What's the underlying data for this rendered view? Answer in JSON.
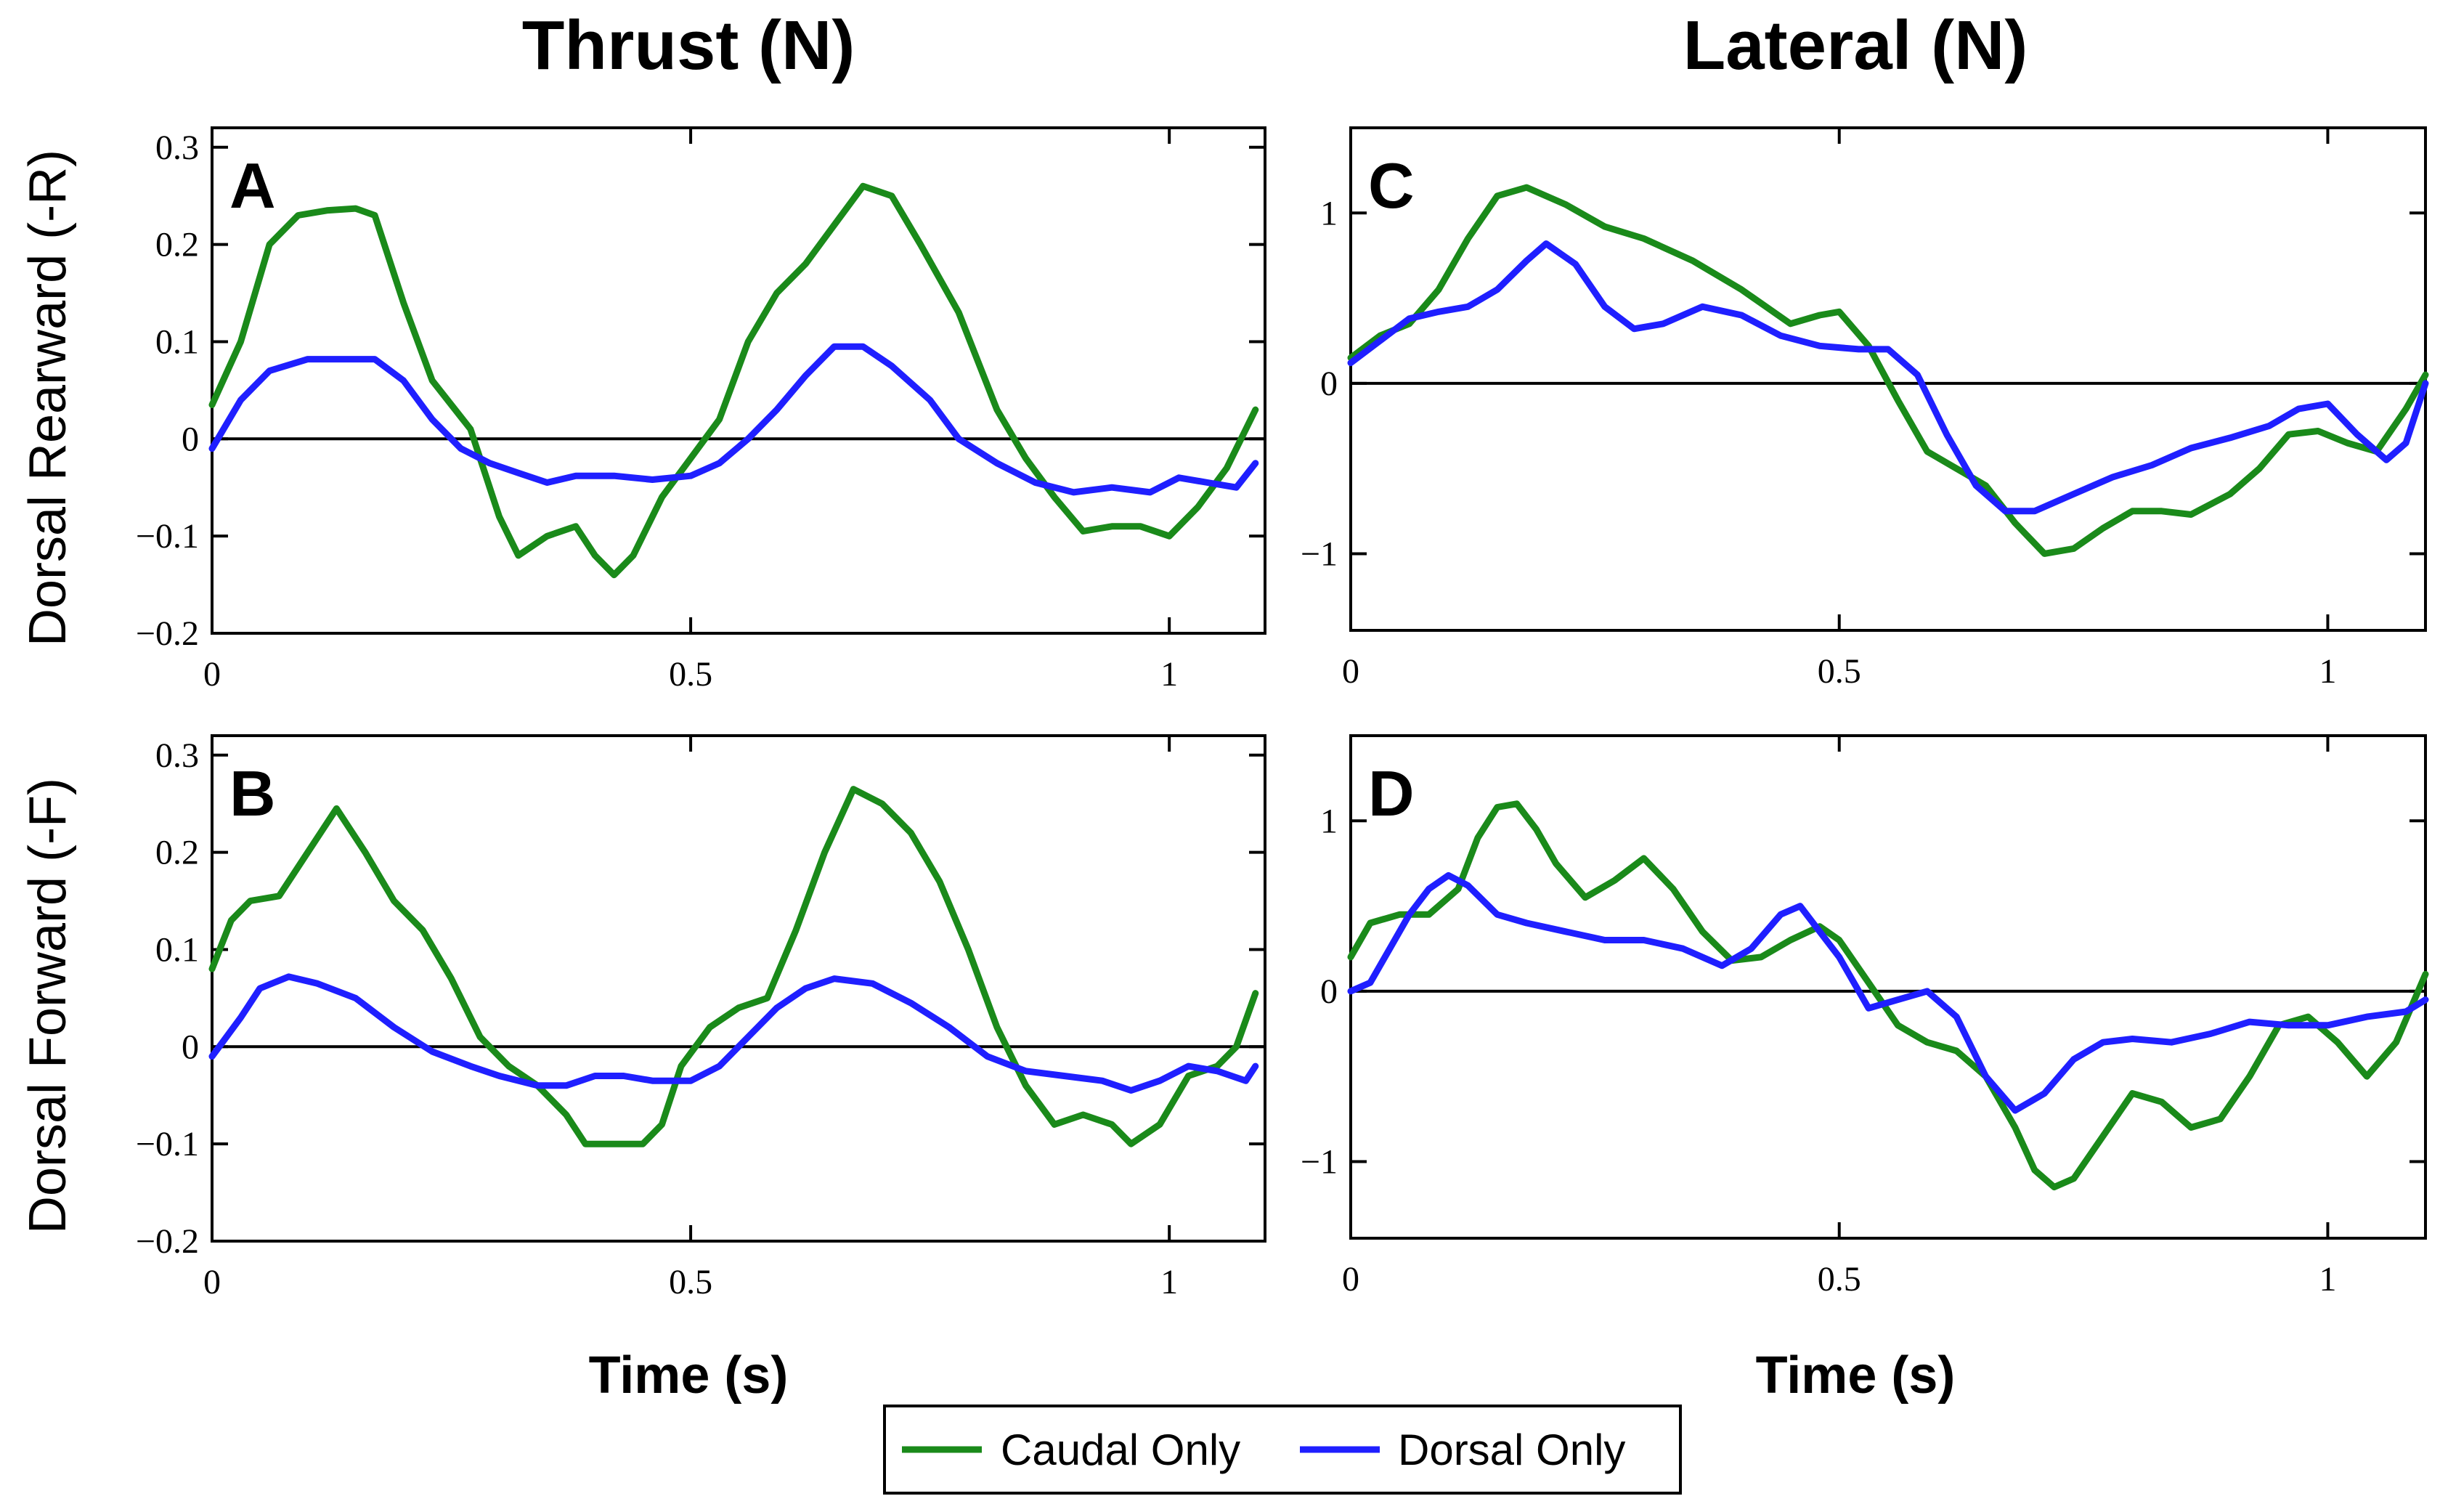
{
  "figure": {
    "col_titles": [
      "Thrust (N)",
      "Lateral (N)"
    ],
    "row_labels": [
      "Dorsal Rearward (-R)",
      "Dorsal Forward (-F)"
    ],
    "xlabel": "Time (s)"
  },
  "legend": {
    "entries": [
      {
        "label": "Caudal Only",
        "color": "#1a8a1a"
      },
      {
        "label": "Dorsal Only",
        "color": "#1f1fff"
      }
    ]
  },
  "chart_data": [
    {
      "panel": "A",
      "type": "line",
      "xlim": [
        0,
        1.1
      ],
      "ylim": [
        -0.2,
        0.32
      ],
      "xticks": [
        0,
        0.5,
        1
      ],
      "yticks": [
        -0.2,
        -0.1,
        0,
        0.1,
        0.2,
        0.3
      ],
      "xtick_labels": [
        "0",
        "0.5",
        "1"
      ],
      "ytick_labels": [
        "−0.2",
        "−0.1",
        "0",
        "0.1",
        "0.2",
        "0.3"
      ],
      "zero_line": true,
      "series": [
        {
          "name": "Caudal Only",
          "x": [
            0,
            0.03,
            0.06,
            0.09,
            0.12,
            0.15,
            0.17,
            0.2,
            0.23,
            0.27,
            0.3,
            0.32,
            0.35,
            0.38,
            0.4,
            0.42,
            0.44,
            0.47,
            0.5,
            0.53,
            0.56,
            0.59,
            0.62,
            0.65,
            0.68,
            0.71,
            0.74,
            0.78,
            0.82,
            0.85,
            0.88,
            0.91,
            0.94,
            0.97,
            1.0,
            1.03,
            1.06,
            1.09
          ],
          "y": [
            0.035,
            0.1,
            0.2,
            0.23,
            0.235,
            0.237,
            0.23,
            0.14,
            0.06,
            0.01,
            -0.08,
            -0.12,
            -0.1,
            -0.09,
            -0.12,
            -0.14,
            -0.12,
            -0.06,
            -0.02,
            0.02,
            0.1,
            0.15,
            0.18,
            0.22,
            0.26,
            0.25,
            0.2,
            0.13,
            0.03,
            -0.02,
            -0.06,
            -0.095,
            -0.09,
            -0.09,
            -0.1,
            -0.07,
            -0.03,
            0.03
          ]
        },
        {
          "name": "Dorsal Only",
          "x": [
            0,
            0.03,
            0.06,
            0.1,
            0.14,
            0.17,
            0.2,
            0.23,
            0.26,
            0.29,
            0.32,
            0.35,
            0.38,
            0.42,
            0.46,
            0.5,
            0.53,
            0.56,
            0.59,
            0.62,
            0.65,
            0.68,
            0.71,
            0.75,
            0.78,
            0.82,
            0.86,
            0.9,
            0.94,
            0.98,
            1.01,
            1.04,
            1.07,
            1.09
          ],
          "y": [
            -0.01,
            0.04,
            0.07,
            0.082,
            0.082,
            0.082,
            0.06,
            0.02,
            -0.01,
            -0.025,
            -0.035,
            -0.045,
            -0.038,
            -0.038,
            -0.042,
            -0.038,
            -0.025,
            0,
            0.03,
            0.065,
            0.095,
            0.095,
            0.075,
            0.04,
            0,
            -0.025,
            -0.045,
            -0.055,
            -0.05,
            -0.055,
            -0.04,
            -0.045,
            -0.05,
            -0.025
          ]
        }
      ]
    },
    {
      "panel": "B",
      "type": "line",
      "xlim": [
        0,
        1.1
      ],
      "ylim": [
        -0.2,
        0.32
      ],
      "xticks": [
        0,
        0.5,
        1
      ],
      "yticks": [
        -0.2,
        -0.1,
        0,
        0.1,
        0.2,
        0.3
      ],
      "xtick_labels": [
        "0",
        "0.5",
        "1"
      ],
      "ytick_labels": [
        "−0.2",
        "−0.1",
        "0",
        "0.1",
        "0.2",
        "0.3"
      ],
      "zero_line": true,
      "series": [
        {
          "name": "Caudal Only",
          "x": [
            0,
            0.02,
            0.04,
            0.07,
            0.1,
            0.13,
            0.16,
            0.19,
            0.22,
            0.25,
            0.28,
            0.31,
            0.34,
            0.37,
            0.39,
            0.42,
            0.45,
            0.47,
            0.49,
            0.52,
            0.55,
            0.58,
            0.61,
            0.64,
            0.67,
            0.7,
            0.73,
            0.76,
            0.79,
            0.82,
            0.85,
            0.88,
            0.91,
            0.94,
            0.96,
            0.99,
            1.02,
            1.05,
            1.07,
            1.09
          ],
          "y": [
            0.08,
            0.13,
            0.15,
            0.155,
            0.2,
            0.245,
            0.2,
            0.15,
            0.12,
            0.07,
            0.01,
            -0.02,
            -0.04,
            -0.07,
            -0.1,
            -0.1,
            -0.1,
            -0.08,
            -0.02,
            0.02,
            0.04,
            0.05,
            0.12,
            0.2,
            0.265,
            0.25,
            0.22,
            0.17,
            0.1,
            0.02,
            -0.04,
            -0.08,
            -0.07,
            -0.08,
            -0.1,
            -0.08,
            -0.03,
            -0.02,
            0,
            0.055
          ]
        },
        {
          "name": "Dorsal Only",
          "x": [
            0,
            0.03,
            0.05,
            0.08,
            0.11,
            0.15,
            0.19,
            0.23,
            0.27,
            0.3,
            0.34,
            0.37,
            0.4,
            0.43,
            0.46,
            0.5,
            0.53,
            0.56,
            0.59,
            0.62,
            0.65,
            0.69,
            0.73,
            0.77,
            0.81,
            0.85,
            0.89,
            0.93,
            0.96,
            0.99,
            1.02,
            1.05,
            1.08,
            1.09
          ],
          "y": [
            -0.01,
            0.03,
            0.06,
            0.072,
            0.065,
            0.05,
            0.02,
            -0.005,
            -0.02,
            -0.03,
            -0.04,
            -0.04,
            -0.03,
            -0.03,
            -0.035,
            -0.035,
            -0.02,
            0.01,
            0.04,
            0.06,
            0.07,
            0.065,
            0.045,
            0.02,
            -0.01,
            -0.025,
            -0.03,
            -0.035,
            -0.045,
            -0.035,
            -0.02,
            -0.025,
            -0.035,
            -0.02
          ]
        }
      ]
    },
    {
      "panel": "C",
      "type": "line",
      "xlim": [
        0,
        1.1
      ],
      "ylim": [
        -1.45,
        1.5
      ],
      "xticks": [
        0,
        0.5,
        1
      ],
      "yticks": [
        -1,
        0,
        1
      ],
      "xtick_labels": [
        "0",
        "0.5",
        "1"
      ],
      "ytick_labels": [
        "−1",
        "0",
        "1"
      ],
      "zero_line": true,
      "series": [
        {
          "name": "Caudal Only",
          "x": [
            0,
            0.03,
            0.06,
            0.09,
            0.12,
            0.15,
            0.18,
            0.22,
            0.26,
            0.3,
            0.35,
            0.4,
            0.45,
            0.48,
            0.5,
            0.53,
            0.56,
            0.59,
            0.62,
            0.65,
            0.68,
            0.71,
            0.74,
            0.77,
            0.8,
            0.83,
            0.86,
            0.9,
            0.93,
            0.96,
            0.99,
            1.02,
            1.05,
            1.08,
            1.1
          ],
          "y": [
            0.15,
            0.28,
            0.35,
            0.55,
            0.85,
            1.1,
            1.15,
            1.05,
            0.92,
            0.85,
            0.72,
            0.55,
            0.35,
            0.4,
            0.42,
            0.22,
            -0.1,
            -0.4,
            -0.5,
            -0.6,
            -0.82,
            -1.0,
            -0.97,
            -0.85,
            -0.75,
            -0.75,
            -0.77,
            -0.65,
            -0.5,
            -0.3,
            -0.28,
            -0.35,
            -0.4,
            -0.15,
            0.05
          ]
        },
        {
          "name": "Dorsal Only",
          "x": [
            0,
            0.03,
            0.06,
            0.09,
            0.12,
            0.15,
            0.18,
            0.2,
            0.23,
            0.26,
            0.29,
            0.32,
            0.36,
            0.4,
            0.44,
            0.48,
            0.52,
            0.55,
            0.58,
            0.61,
            0.64,
            0.67,
            0.7,
            0.74,
            0.78,
            0.82,
            0.86,
            0.9,
            0.94,
            0.97,
            1.0,
            1.03,
            1.06,
            1.08,
            1.1
          ],
          "y": [
            0.12,
            0.25,
            0.38,
            0.42,
            0.45,
            0.55,
            0.72,
            0.82,
            0.7,
            0.45,
            0.32,
            0.35,
            0.45,
            0.4,
            0.28,
            0.22,
            0.2,
            0.2,
            0.05,
            -0.3,
            -0.6,
            -0.75,
            -0.75,
            -0.65,
            -0.55,
            -0.48,
            -0.38,
            -0.32,
            -0.25,
            -0.15,
            -0.12,
            -0.3,
            -0.45,
            -0.35,
            0
          ]
        }
      ]
    },
    {
      "panel": "D",
      "type": "line",
      "xlim": [
        0,
        1.1
      ],
      "ylim": [
        -1.45,
        1.5
      ],
      "xticks": [
        0,
        0.5,
        1
      ],
      "yticks": [
        -1,
        0,
        1
      ],
      "xtick_labels": [
        "0",
        "0.5",
        "1"
      ],
      "ytick_labels": [
        "−1",
        "0",
        "1"
      ],
      "zero_line": true,
      "series": [
        {
          "name": "Caudal Only",
          "x": [
            0,
            0.02,
            0.05,
            0.08,
            0.11,
            0.13,
            0.15,
            0.17,
            0.19,
            0.21,
            0.24,
            0.27,
            0.3,
            0.33,
            0.36,
            0.39,
            0.42,
            0.45,
            0.48,
            0.5,
            0.53,
            0.56,
            0.59,
            0.62,
            0.65,
            0.68,
            0.7,
            0.72,
            0.74,
            0.77,
            0.8,
            0.83,
            0.86,
            0.89,
            0.92,
            0.95,
            0.98,
            1.01,
            1.04,
            1.07,
            1.1
          ],
          "y": [
            0.2,
            0.4,
            0.45,
            0.45,
            0.6,
            0.9,
            1.08,
            1.1,
            0.95,
            0.75,
            0.55,
            0.65,
            0.78,
            0.6,
            0.35,
            0.18,
            0.2,
            0.3,
            0.38,
            0.3,
            0.05,
            -0.2,
            -0.3,
            -0.35,
            -0.5,
            -0.8,
            -1.05,
            -1.15,
            -1.1,
            -0.85,
            -0.6,
            -0.65,
            -0.8,
            -0.75,
            -0.5,
            -0.2,
            -0.15,
            -0.3,
            -0.5,
            -0.3,
            0.1
          ]
        },
        {
          "name": "Dorsal Only",
          "x": [
            0,
            0.02,
            0.04,
            0.06,
            0.08,
            0.1,
            0.12,
            0.15,
            0.18,
            0.22,
            0.26,
            0.3,
            0.34,
            0.38,
            0.41,
            0.44,
            0.46,
            0.48,
            0.5,
            0.53,
            0.56,
            0.59,
            0.62,
            0.65,
            0.68,
            0.71,
            0.74,
            0.77,
            0.8,
            0.84,
            0.88,
            0.92,
            0.96,
            1.0,
            1.04,
            1.08,
            1.1
          ],
          "y": [
            0,
            0.05,
            0.25,
            0.45,
            0.6,
            0.68,
            0.62,
            0.45,
            0.4,
            0.35,
            0.3,
            0.3,
            0.25,
            0.15,
            0.25,
            0.45,
            0.5,
            0.35,
            0.2,
            -0.1,
            -0.05,
            0,
            -0.15,
            -0.5,
            -0.7,
            -0.6,
            -0.4,
            -0.3,
            -0.28,
            -0.3,
            -0.25,
            -0.18,
            -0.2,
            -0.2,
            -0.15,
            -0.12,
            -0.05
          ]
        }
      ]
    }
  ]
}
